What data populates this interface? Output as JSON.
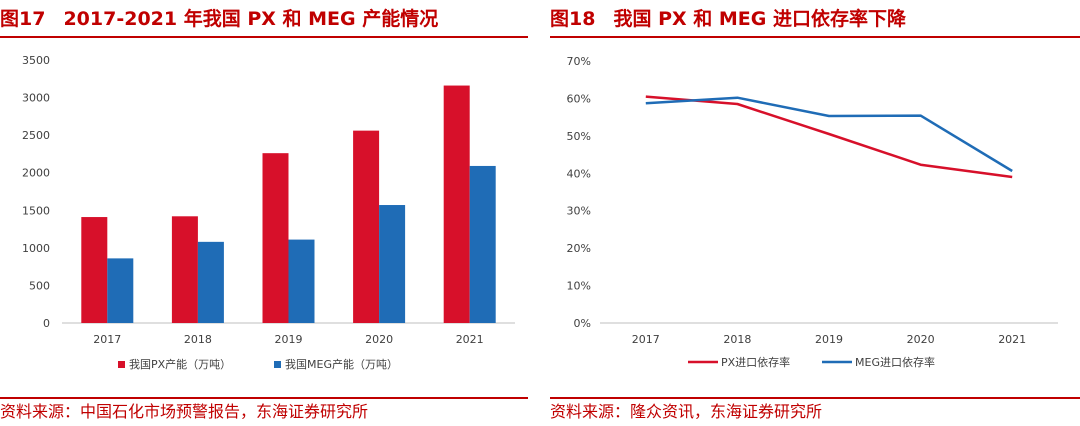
{
  "left_panel": {
    "fig_num": "图17",
    "title": "2017-2021 年我国 PX 和 MEG 产能情况",
    "source": "资料来源：中国石化市场预警报告，东海证券研究所"
  },
  "right_panel": {
    "fig_num": "图18",
    "title": "我国 PX 和 MEG 进口依存率下降",
    "source": "资料来源：隆众资讯，东海证券研究所"
  },
  "chart_data": [
    {
      "type": "bar",
      "categories": [
        "2017",
        "2018",
        "2019",
        "2020",
        "2021"
      ],
      "series": [
        {
          "name": "我国PX产能（万吨）",
          "values": [
            1410,
            1420,
            2260,
            2560,
            3160
          ],
          "color": "#d7102a"
        },
        {
          "name": "我国MEG产能（万吨）",
          "values": [
            860,
            1080,
            1110,
            1570,
            2090
          ],
          "color": "#1f6cb6"
        }
      ],
      "ylim": [
        0,
        3500
      ],
      "yticks": [
        "0",
        "500",
        "1000",
        "1500",
        "2000",
        "2500",
        "3000",
        "3500"
      ],
      "legend_position": "bottom",
      "grid": false
    },
    {
      "type": "line",
      "categories": [
        "2017",
        "2018",
        "2019",
        "2020",
        "2021"
      ],
      "series": [
        {
          "name": "PX进口依存率",
          "values": [
            60.5,
            58.5,
            50.5,
            42.3,
            39.0
          ],
          "color": "#d7102a"
        },
        {
          "name": "MEG进口依存率",
          "values": [
            58.7,
            60.2,
            55.3,
            55.4,
            40.6
          ],
          "color": "#1f6cb6"
        }
      ],
      "ylim": [
        0,
        70
      ],
      "yticks": [
        "0%",
        "10%",
        "20%",
        "30%",
        "40%",
        "50%",
        "60%",
        "70%"
      ],
      "legend_position": "bottom",
      "grid": false
    }
  ]
}
